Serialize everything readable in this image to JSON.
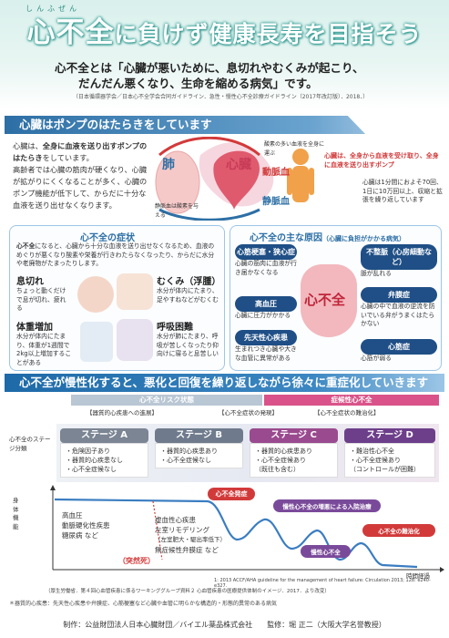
{
  "header": {
    "ruby": "しんふぜん",
    "title_part1": "心不全",
    "title_part2": "に負けず健康長寿を目指そう",
    "lead_line1": "心不全とは「心臓が悪いために、息切れやむくみが起こり、",
    "lead_line2": "だんだん悪くなり、生命を縮める病気」です。",
    "citation": "（日本循環器学会／日本心不全学会合同ガイドライン．急性・慢性心不全診療ガイドライン（2017年改訂版）．2018．）"
  },
  "section1": {
    "heading": "心臓はポンプのはたらきをしています",
    "intro_a": "心臓は、",
    "intro_b": "全身に血液を送り出すポンプのはたらき",
    "intro_c": "をしています。",
    "intro_d": "高齢者では心臓の筋肉が硬くなり、心臓が拡がりにくくなることが多く、心臓のポンプ機能が低下して、からだに十分な血液を送り出せなくなります。",
    "lung_label": "肺",
    "heart_label": "心臓",
    "vein_label": "静脈血",
    "artery_label": "動脈血",
    "oxygen_rich": "酸素の多い血液を全身に運ぶ",
    "oxygen_poor": "静脈血は酸素を与える",
    "right_a": "心臓は、全身から血液を受け取り、全身に血液を送り出すポンプ",
    "right_b": "心臓は1分間におよそ70回、1日に10万回以上、収縮と拡張を繰り返しています"
  },
  "symptoms": {
    "title": "心不全の症状",
    "desc_a": "心不全",
    "desc_b": "になると、心臓から十分な血液を送り出せなくなるため、血液のめぐりが悪くなり酸素や栄養が行きわたらなくなったり、からだに水分や老廃物がたまったりします。",
    "items": [
      {
        "name": "息切れ",
        "desc": "ちょっと動くだけで息が切れ、疲れる"
      },
      {
        "name": "むくみ（浮腫）",
        "desc": "水分が体内にたまり、足やすねなどがむくむ"
      },
      {
        "name": "体重増加",
        "desc": "水分が体内にたまり、体重が1週間で2kg以上増加することがある"
      },
      {
        "name": "呼吸困難",
        "desc": "水分が肺にたまり、呼吸が苦しくなったり仰向けに寝ると息苦しい"
      }
    ]
  },
  "causes": {
    "title": "心不全の主な原因",
    "subtitle": "（心臓に負担がかかる病気）",
    "center": "心不全",
    "items": [
      {
        "name": "心筋梗塞・狭心症",
        "desc": "心臓の筋肉に血液が行き届かなくなる"
      },
      {
        "name": "不整脈（心房細動など）",
        "desc": "脈が乱れる"
      },
      {
        "name": "高血圧",
        "desc": "心臓に圧力がかかる"
      },
      {
        "name": "弁膜症",
        "desc": "心臓の中で血液の逆流を防いでいる弁がうまくはたらかない"
      },
      {
        "name": "先天性心疾患",
        "desc": "生まれつき心臓や大きな血管に異常がある"
      },
      {
        "name": "心筋症",
        "desc": "心筋が弱る"
      }
    ]
  },
  "section2": {
    "heading": "心不全が慢性化すると、悪化と回復を繰り返しながら徐々に重症化していきます",
    "band_risk": "心不全リスク状態",
    "band_chronic": "症候性心不全",
    "sub_a": "【器質的心疾患への進展】",
    "sub_b": "【心不全症状の発現】",
    "sub_c": "【心不全症状の難治化】",
    "stage_axis": "心不全のステージ分類",
    "stages": [
      {
        "label": "ステージ A",
        "items": [
          "・危険因子あり",
          "・器質的心疾患なし",
          "・心不全症候なし"
        ]
      },
      {
        "label": "ステージ B",
        "items": [
          "・器質的心疾患あり",
          "・心不全症候なし"
        ]
      },
      {
        "label": "ステージ C",
        "items": [
          "・器質的心疾患あり",
          "・心不全症候あり",
          "（既往も含む）"
        ]
      },
      {
        "label": "ステージ D",
        "items": [
          "・難治性心不全",
          "・心不全症候あり",
          "（コントロールが困難）"
        ]
      }
    ],
    "y_axis": "身体機能",
    "x_axis": "時間経過",
    "risk_list": [
      "高血圧",
      "動脈硬化性疾患",
      "糖尿病 など"
    ],
    "disease_list": [
      "虚血性心疾患",
      "左室リモデリング",
      "（左室肥大・駆出率低下）",
      "無症候性弁膜症 など"
    ],
    "sudden_death": "（突然死）",
    "onset": "心不全発症",
    "worsen": "慢性心不全の増悪による入院治療",
    "refractory": "心不全の難治化",
    "chronic_label": "慢性心不全",
    "ref1": "1: 2013 ACCF/AHA guideline for the management of heart failure: Circulation 2013; 128: e240-e327.",
    "ref2": "（厚生労働省．第４回心血管疾患に係るワーキンググループ資料２ 心血管疾患の医療提供体制のイメージ．2017．より改変）",
    "footnote": "＊器質的心疾患：先天性心疾患や弁膜症、心筋梗塞など心臓や血管に明らかな構造的・形態的異常のある病気"
  },
  "footer": {
    "producer": "制作：公益財団法人日本心臓財団／バイエル薬品株式会社",
    "supervisor": "監修：堀 正二（大阪大学名誉教授）"
  },
  "colors": {
    "teal": "#3aa39a",
    "blue": "#2d6fa5",
    "red": "#d23a3a",
    "purple": "#7a4a9a",
    "navy": "#1f4f86"
  }
}
